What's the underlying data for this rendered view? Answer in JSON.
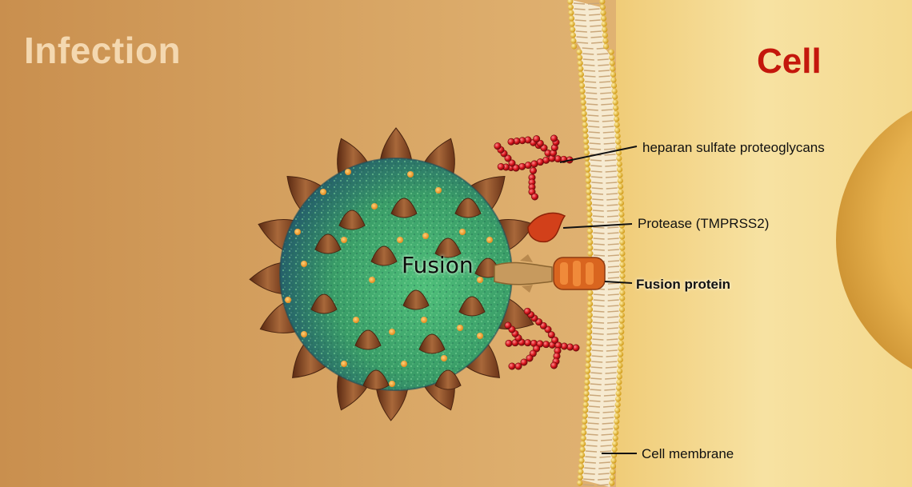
{
  "titles": {
    "infection": "Infection",
    "cell": "Cell"
  },
  "virus": {
    "label": "Fusion"
  },
  "annotations": {
    "heparan": "heparan sulfate proteoglycans",
    "protease": "Protease (TMPRSS2)",
    "fusion_protein": "Fusion protein",
    "cell_membrane": "Cell membrane"
  },
  "colors": {
    "background": "#d9a562",
    "cell_interior": "#f3d788",
    "title_cell": "#c4170c",
    "title_infection": "#f4d8b0",
    "virus_body": "#3e9a6a",
    "spike": "#8a4a22",
    "proteoglycan": "#d8141c",
    "protease": "#d2401a",
    "membrane_head": "#e7b52a"
  }
}
